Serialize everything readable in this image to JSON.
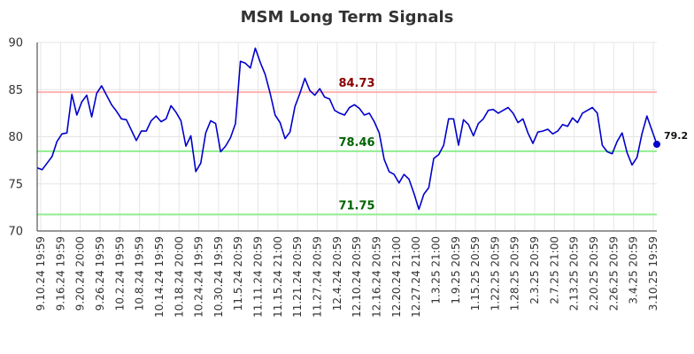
{
  "chart_data": {
    "type": "line",
    "title": "MSM Long Term Signals",
    "xlabel": "",
    "ylabel": "",
    "ylim": [
      70,
      90
    ],
    "y_ticks": [
      70,
      75,
      80,
      85,
      90
    ],
    "grid": true,
    "x_tick_labels": [
      "9.10.24 19:59",
      "9.16.24 19:59",
      "9.20.24 20:00",
      "9.26.24 19:59",
      "10.2.24 19:59",
      "10.8.24 19:59",
      "10.14.24 19:59",
      "10.18.24 20:00",
      "10.24.24 19:59",
      "10.30.24 19:59",
      "11.5.24 20:59",
      "11.11.24 20:59",
      "11.15.24 21:00",
      "11.21.24 20:59",
      "11.27.24 20:59",
      "12.4.24 20:59",
      "12.10.24 20:59",
      "12.16.24 20:59",
      "12.20.24 21:00",
      "12.27.24 21:00",
      "1.3.25 21:00",
      "1.9.25 20:59",
      "1.15.25 20:59",
      "1.22.25 20:59",
      "1.28.25 20:59",
      "2.3.25 20:59",
      "2.7.25 21:00",
      "2.13.25 20:59",
      "2.20.25 20:59",
      "2.26.25 20:59",
      "3.4.25 20:59",
      "3.10.25 19:59"
    ],
    "values": [
      76.7,
      76.5,
      77.2,
      77.9,
      79.5,
      80.3,
      80.4,
      84.5,
      82.3,
      83.7,
      84.4,
      82.1,
      84.6,
      85.4,
      84.4,
      83.4,
      82.7,
      81.9,
      81.8,
      80.7,
      79.6,
      80.6,
      80.6,
      81.7,
      82.2,
      81.6,
      81.9,
      83.3,
      82.6,
      81.7,
      79.0,
      80.1,
      76.3,
      77.2,
      80.4,
      81.7,
      81.4,
      78.4,
      79.0,
      79.9,
      81.4,
      88.0,
      87.8,
      87.3,
      89.4,
      87.9,
      86.6,
      84.6,
      82.3,
      81.5,
      79.8,
      80.5,
      83.2,
      84.6,
      86.2,
      84.9,
      84.4,
      85.1,
      84.2,
      84.0,
      82.8,
      82.5,
      82.3,
      83.1,
      83.4,
      83.0,
      82.3,
      82.5,
      81.6,
      80.4,
      77.6,
      76.3,
      76.0,
      75.1,
      76.0,
      75.5,
      74.0,
      72.3,
      73.9,
      74.6,
      77.7,
      78.1,
      79.1,
      81.9,
      81.9,
      79.1,
      81.8,
      81.3,
      80.1,
      81.4,
      81.9,
      82.8,
      82.9,
      82.5,
      82.8,
      83.1,
      82.5,
      81.5,
      81.9,
      80.4,
      79.3,
      80.5,
      80.6,
      80.8,
      80.3,
      80.6,
      81.3,
      81.1,
      82.0,
      81.5,
      82.5,
      82.8,
      83.1,
      82.5,
      79.1,
      78.4,
      78.2,
      79.5,
      80.4,
      78.3,
      77.0,
      77.8,
      80.3,
      82.2,
      80.7,
      79.2
    ],
    "last_value_label": "79.2",
    "levels": [
      {
        "value": 84.73,
        "label": "84.73",
        "color": "#ffb3b3",
        "text_color": "#8b0000"
      },
      {
        "value": 78.46,
        "label": "78.46",
        "color": "#90ee90",
        "text_color": "#006400"
      },
      {
        "value": 71.75,
        "label": "71.75",
        "color": "#90ee90",
        "text_color": "#006400"
      }
    ],
    "line_color": "#0000cc"
  }
}
